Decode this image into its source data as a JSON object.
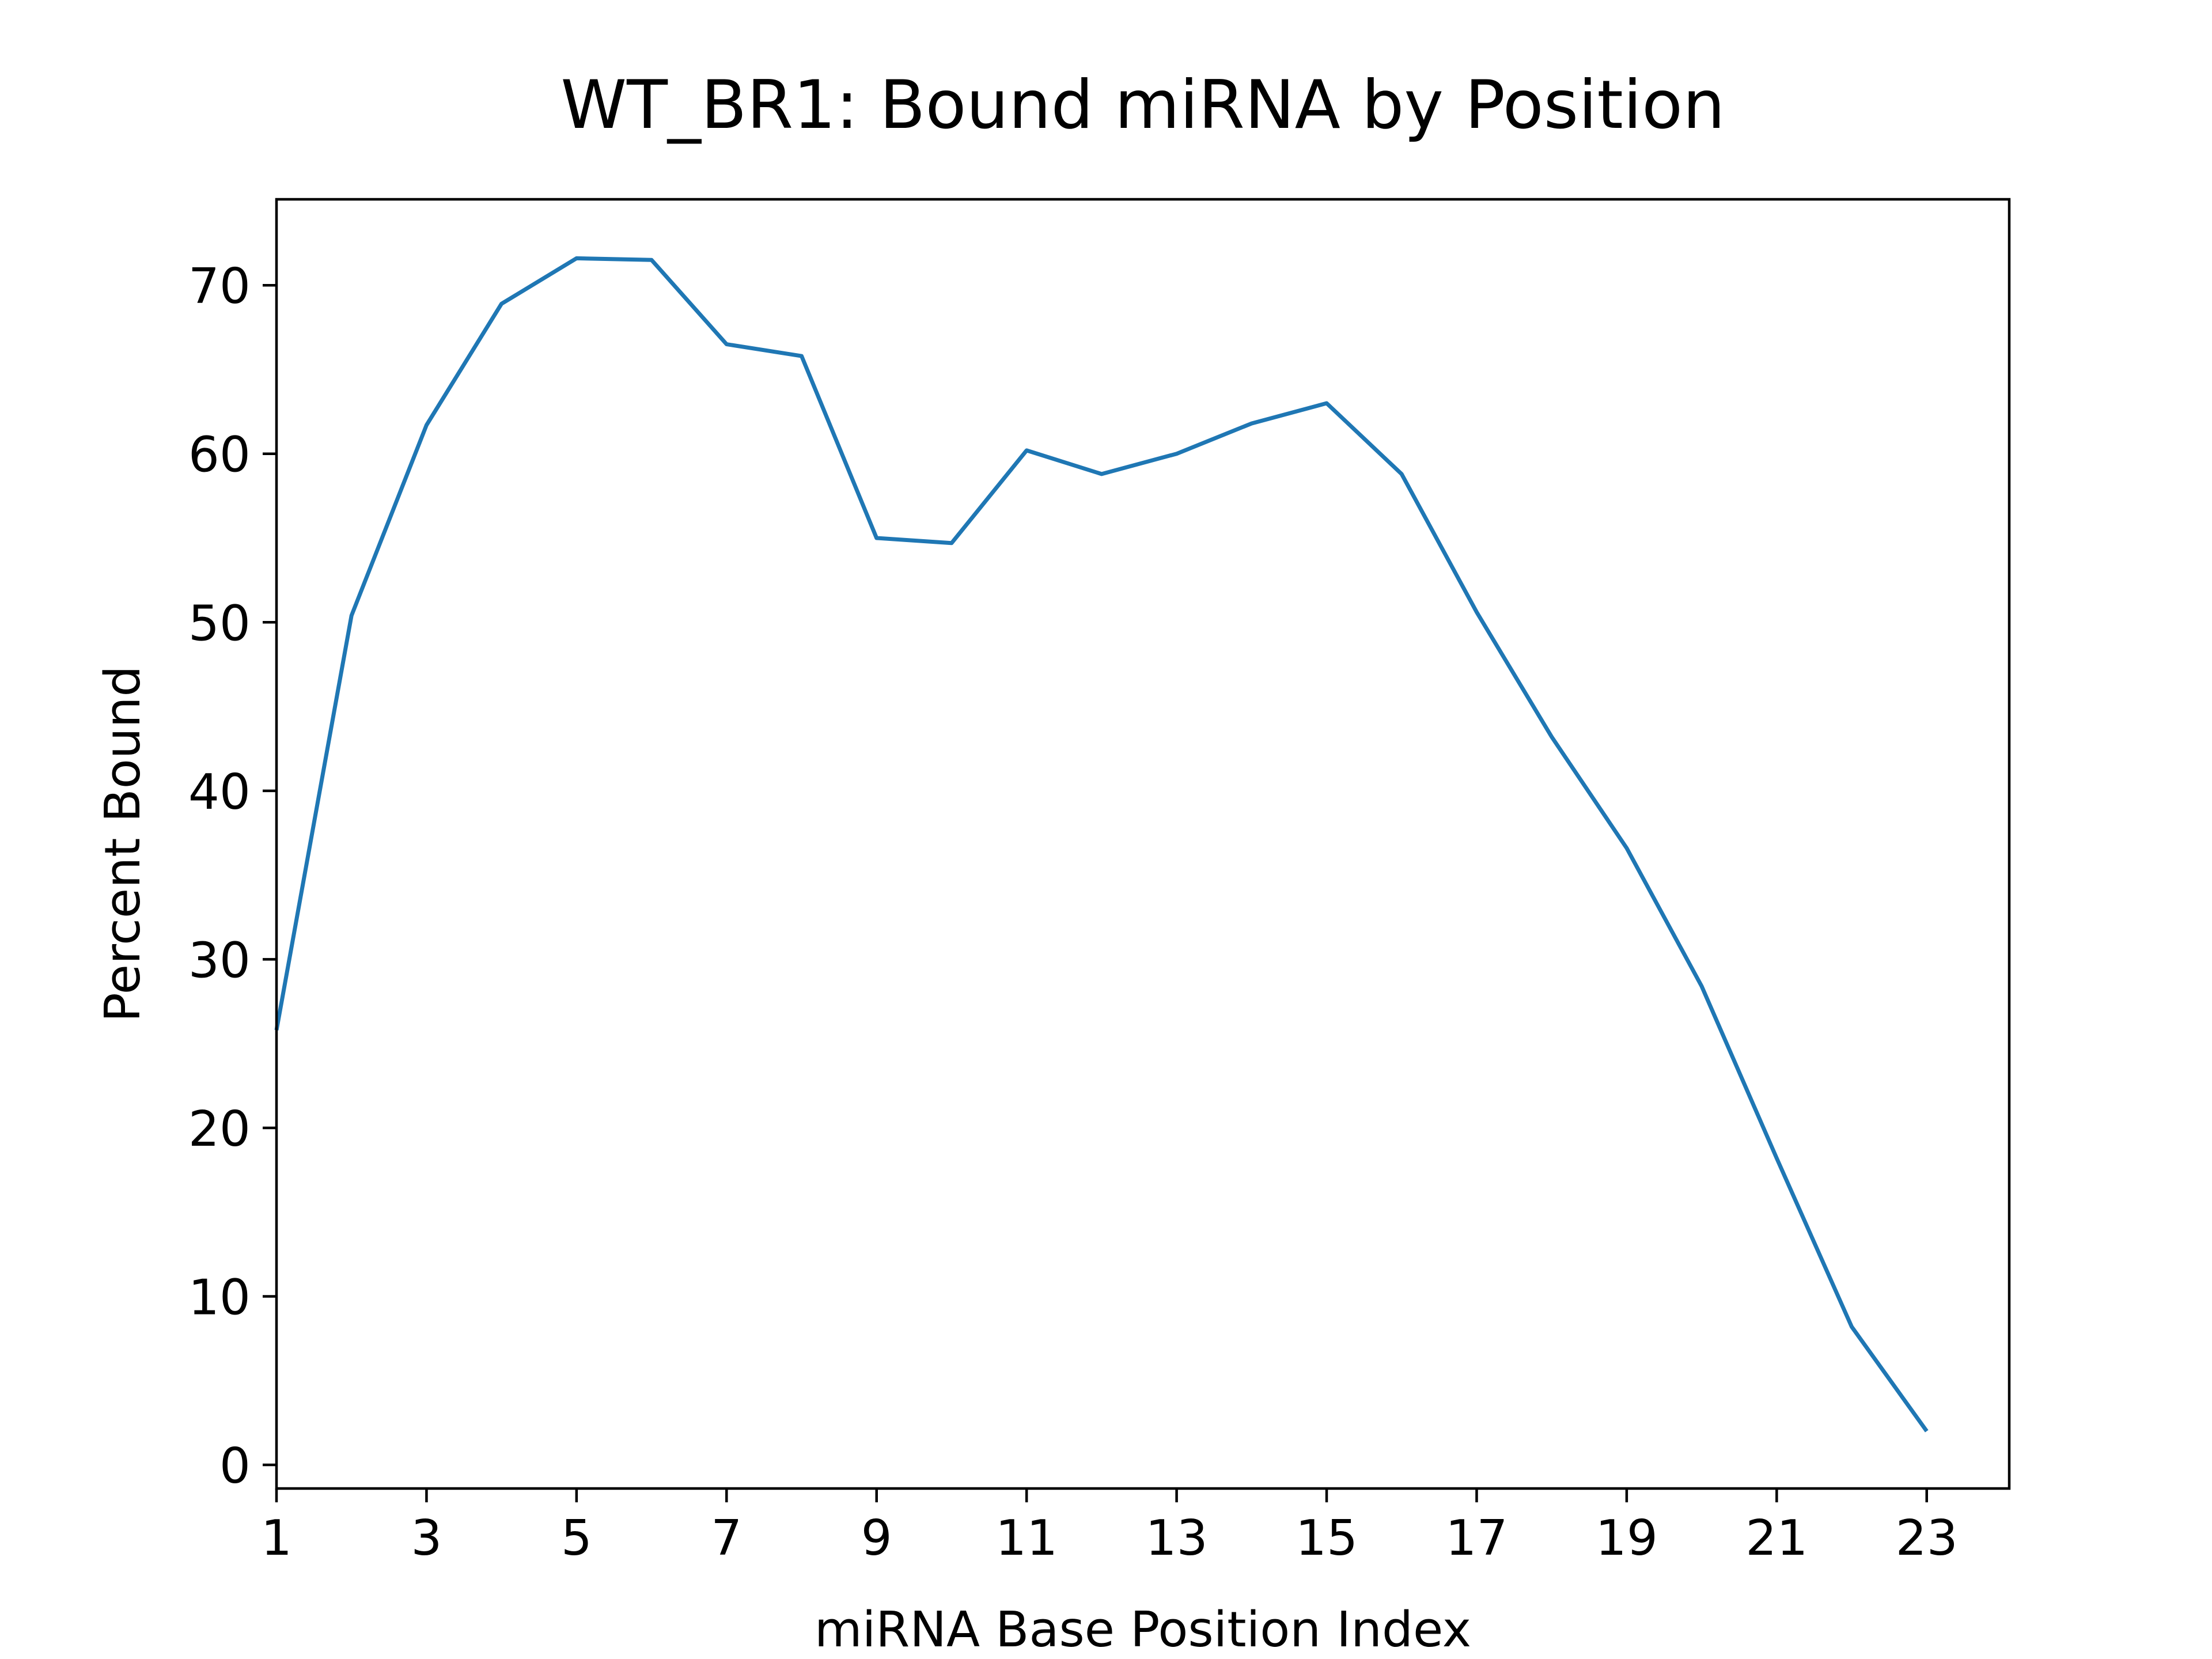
{
  "chart_data": {
    "type": "line",
    "title": "WT_BR1: Bound miRNA by Position",
    "xlabel": "miRNA Base Position Index",
    "ylabel": "Percent Bound",
    "xlim": [
      1,
      24.1
    ],
    "ylim": [
      -1.4,
      75.1
    ],
    "x_ticks": [
      1,
      3,
      5,
      7,
      9,
      11,
      13,
      15,
      17,
      19,
      21,
      23
    ],
    "y_ticks": [
      0,
      10,
      20,
      30,
      40,
      50,
      60,
      70
    ],
    "grid": false,
    "legend": "none",
    "series": [
      {
        "color": "#1f77b4",
        "x": [
          1,
          2,
          3,
          4,
          5,
          6,
          7,
          8,
          9,
          10,
          11,
          12,
          13,
          14,
          15,
          16,
          17,
          18,
          19,
          20,
          21,
          22,
          23
        ],
        "y": [
          25.8,
          50.4,
          61.7,
          68.9,
          71.6,
          71.5,
          66.5,
          65.8,
          55.0,
          54.7,
          60.2,
          58.8,
          60.0,
          61.8,
          63.0,
          58.8,
          50.6,
          43.2,
          36.6,
          28.4,
          18.2,
          8.2,
          2.0
        ]
      }
    ]
  }
}
